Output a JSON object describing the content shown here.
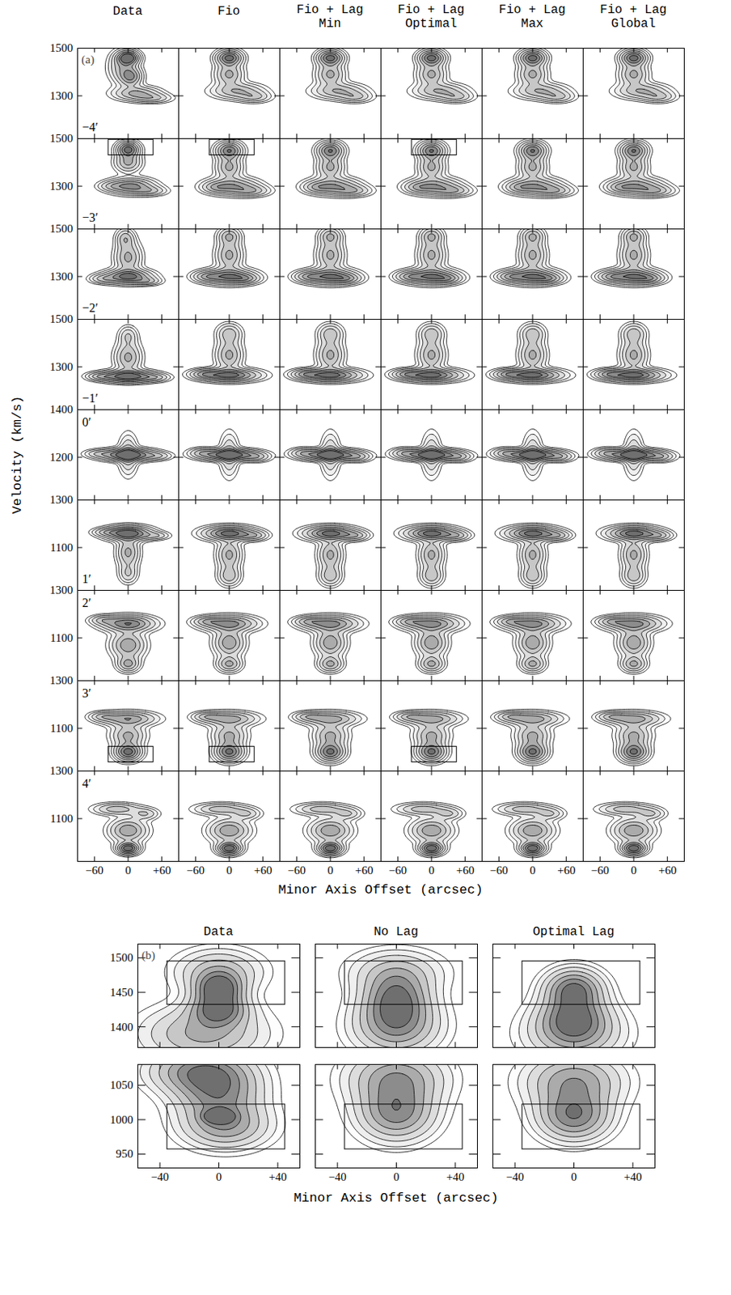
{
  "chart_data": [
    {
      "type": "contour",
      "panel": "(a)",
      "y_label": "Velocity (km/s)",
      "x_label": "Minor Axis Offset (arcsec)",
      "columns": [
        "Data",
        "Fio",
        "Fio + Lag Min",
        "Fio + Lag Optimal",
        "Fio + Lag Max",
        "Fio + Lag Global"
      ],
      "xlim": [
        -90,
        90
      ],
      "xticks": [
        {
          "value": -60,
          "label": "−60"
        },
        0,
        {
          "value": 60,
          "label": "+60"
        }
      ],
      "contour_levels": [
        0.05,
        0.1,
        0.18,
        0.3,
        0.45,
        0.62,
        0.8
      ],
      "rows": [
        {
          "label": "−4′",
          "ylim": [
            1120,
            1500
          ],
          "yticks": [
            1300,
            1500
          ],
          "data_components": [
            [
              0,
              1460,
              12,
              18,
              1.0
            ],
            [
              5,
              1380,
              12,
              25,
              0.6
            ],
            [
              15,
              1310,
              25,
              18,
              0.5
            ],
            [
              45,
              1290,
              20,
              12,
              0.3
            ],
            [
              -10,
              1420,
              15,
              40,
              0.4
            ]
          ],
          "model_components": [
            [
              0,
              1460,
              14,
              20,
              0.9
            ],
            [
              0,
              1390,
              15,
              30,
              0.5
            ],
            [
              15,
              1320,
              28,
              20,
              0.45
            ],
            [
              45,
              1295,
              18,
              14,
              0.3
            ]
          ]
        },
        {
          "label": "−3′",
          "ylim": [
            1120,
            1500
          ],
          "yticks": [
            1300,
            1500
          ],
          "data_components": [
            [
              0,
              1455,
              12,
              20,
              0.9
            ],
            [
              0,
              1400,
              14,
              25,
              0.5
            ],
            [
              5,
              1300,
              25,
              20,
              0.7
            ],
            [
              40,
              1280,
              18,
              12,
              0.3
            ],
            [
              -30,
              1300,
              15,
              12,
              0.2
            ]
          ],
          "model_components": [
            [
              0,
              1450,
              14,
              22,
              0.8
            ],
            [
              0,
              1380,
              14,
              30,
              0.5
            ],
            [
              5,
              1300,
              28,
              22,
              0.6
            ],
            [
              40,
              1280,
              20,
              14,
              0.35
            ],
            [
              -25,
              1295,
              15,
              14,
              0.25
            ]
          ]
        },
        {
          "label": "−2′",
          "ylim": [
            1120,
            1500
          ],
          "yticks": [
            1300,
            1500
          ],
          "data_components": [
            [
              0,
              1300,
              25,
              18,
              0.9
            ],
            [
              0,
              1380,
              14,
              40,
              0.5
            ],
            [
              -5,
              1460,
              10,
              25,
              0.4
            ],
            [
              -45,
              1290,
              15,
              12,
              0.3
            ],
            [
              35,
              1280,
              15,
              10,
              0.3
            ]
          ],
          "model_components": [
            [
              0,
              1300,
              28,
              20,
              0.8
            ],
            [
              0,
              1390,
              14,
              40,
              0.5
            ],
            [
              0,
              1470,
              12,
              22,
              0.45
            ],
            [
              -40,
              1300,
              16,
              14,
              0.35
            ],
            [
              30,
              1290,
              15,
              12,
              0.3
            ]
          ]
        },
        {
          "label": "−1′",
          "ylim": [
            1120,
            1500
          ],
          "yticks": [
            1300,
            1500
          ],
          "data_components": [
            [
              0,
              1260,
              30,
              15,
              1.0
            ],
            [
              0,
              1340,
              14,
              40,
              0.5
            ],
            [
              0,
              1430,
              10,
              25,
              0.3
            ],
            [
              -50,
              1260,
              15,
              10,
              0.3
            ],
            [
              50,
              1255,
              15,
              10,
              0.25
            ]
          ],
          "model_components": [
            [
              0,
              1265,
              32,
              16,
              0.9
            ],
            [
              0,
              1350,
              14,
              40,
              0.5
            ],
            [
              0,
              1440,
              13,
              25,
              0.4
            ],
            [
              -45,
              1270,
              16,
              12,
              0.35
            ]
          ]
        },
        {
          "label": "0′",
          "ylim": [
            1020,
            1400
          ],
          "yticks": [
            1200,
            1400
          ],
          "data_components": [
            [
              0,
              1210,
              30,
              15,
              1.0
            ],
            [
              0,
              1210,
              10,
              50,
              0.4
            ],
            [
              -55,
              1215,
              15,
              10,
              0.2
            ],
            [
              55,
              1205,
              15,
              10,
              0.2
            ]
          ],
          "model_components": [
            [
              0,
              1210,
              32,
              14,
              1.0
            ],
            [
              0,
              1210,
              10,
              55,
              0.35
            ],
            [
              -50,
              1220,
              14,
              12,
              0.25
            ],
            [
              50,
              1200,
              14,
              12,
              0.25
            ]
          ]
        },
        {
          "label": "1′",
          "ylim": [
            920,
            1300
          ],
          "yticks": [
            1100,
            1300
          ],
          "data_components": [
            [
              0,
              1160,
              25,
              18,
              1.0
            ],
            [
              0,
              1080,
              12,
              40,
              0.5
            ],
            [
              0,
              990,
              10,
              25,
              0.3
            ],
            [
              50,
              1150,
              15,
              10,
              0.25
            ],
            [
              -40,
              1165,
              15,
              10,
              0.25
            ]
          ],
          "model_components": [
            [
              0,
              1160,
              28,
              18,
              0.9
            ],
            [
              0,
              1070,
              13,
              40,
              0.5
            ],
            [
              0,
              980,
              12,
              25,
              0.4
            ],
            [
              45,
              1150,
              15,
              12,
              0.3
            ]
          ]
        },
        {
          "label": "2′",
          "ylim": [
            920,
            1300
          ],
          "yticks": [
            1100,
            1300
          ],
          "data_components": [
            [
              0,
              1160,
              28,
              20,
              0.8
            ],
            [
              0,
              1070,
              18,
              35,
              0.6
            ],
            [
              0,
              990,
              12,
              20,
              0.5
            ],
            [
              -45,
              1175,
              15,
              12,
              0.3
            ]
          ],
          "model_components": [
            [
              0,
              1160,
              30,
              20,
              0.7
            ],
            [
              0,
              1080,
              16,
              35,
              0.6
            ],
            [
              0,
              990,
              13,
              20,
              0.5
            ],
            [
              -40,
              1170,
              16,
              12,
              0.3
            ]
          ]
        },
        {
          "label": "3′",
          "ylim": [
            920,
            1300
          ],
          "yticks": [
            1100,
            1300
          ],
          "data_components": [
            [
              0,
              1140,
              30,
              18,
              0.6
            ],
            [
              0,
              1000,
              14,
              22,
              0.9
            ],
            [
              0,
              1070,
              18,
              30,
              0.5
            ],
            [
              -45,
              1150,
              15,
              12,
              0.3
            ]
          ],
          "model_components": [
            [
              0,
              1140,
              30,
              18,
              0.55
            ],
            [
              0,
              1000,
              15,
              24,
              0.85
            ],
            [
              0,
              1070,
              18,
              30,
              0.5
            ],
            [
              -40,
              1150,
              16,
              12,
              0.3
            ]
          ]
        },
        {
          "label": "4′",
          "ylim": [
            920,
            1300
          ],
          "yticks": [
            1100,
            1300
          ],
          "data_components": [
            [
              0,
              975,
              12,
              15,
              1.0
            ],
            [
              0,
              1050,
              20,
              30,
              0.6
            ],
            [
              -20,
              1140,
              25,
              15,
              0.4
            ],
            [
              30,
              1120,
              15,
              15,
              0.3
            ]
          ],
          "model_components": [
            [
              0,
              975,
              13,
              16,
              1.0
            ],
            [
              0,
              1050,
              22,
              30,
              0.6
            ],
            [
              -15,
              1140,
              28,
              15,
              0.4
            ],
            [
              30,
              1120,
              16,
              15,
              0.3
            ]
          ]
        }
      ],
      "boxes": [
        {
          "row": "−3′",
          "columns": [
            "Data",
            "Fio",
            "Fio + Lag Optimal"
          ],
          "x": [
            -35,
            45
          ],
          "y": [
            1430,
            1495
          ]
        },
        {
          "row": "3′",
          "columns": [
            "Data",
            "Fio",
            "Fio + Lag Optimal"
          ],
          "x": [
            -35,
            45
          ],
          "y": [
            957,
            1022
          ]
        }
      ]
    },
    {
      "type": "contour",
      "panel": "(b)",
      "x_label": "Minor Axis Offset (arcsec)",
      "columns": [
        "Data",
        "No Lag",
        "Optimal Lag"
      ],
      "xlim": [
        -55,
        55
      ],
      "xticks": [
        {
          "value": -40,
          "label": "−40"
        },
        0,
        {
          "value": 40,
          "label": "+40"
        }
      ],
      "contour_levels": [
        0.05,
        0.1,
        0.18,
        0.3,
        0.45,
        0.62,
        0.8
      ],
      "rows": [
        {
          "ylim": [
            1370,
            1520
          ],
          "yticks": [
            1400,
            1450,
            1500
          ],
          "box": {
            "x": [
              -35,
              45
            ],
            "y": [
              1432,
              1495
            ]
          },
          "components": [
            [
              [
                0,
                1455,
                10,
                15,
                0.9
              ],
              [
                0,
                1425,
                12,
                15,
                0.8
              ],
              [
                0,
                1480,
                18,
                20,
                0.4
              ],
              [
                -10,
                1390,
                25,
                25,
                0.5
              ]
            ],
            [
              [
                0,
                1440,
                14,
                25,
                0.8
              ],
              [
                0,
                1400,
                18,
                25,
                0.6
              ],
              [
                0,
                1480,
                20,
                20,
                0.3
              ]
            ],
            [
              [
                0,
                1455,
                12,
                18,
                0.8
              ],
              [
                0,
                1415,
                14,
                22,
                0.7
              ],
              [
                0,
                1390,
                20,
                25,
                0.5
              ]
            ]
          ]
        },
        {
          "ylim": [
            930,
            1080
          ],
          "yticks": [
            950,
            1000,
            1050
          ],
          "box": {
            "x": [
              -35,
              45
            ],
            "y": [
              957,
              1022
            ]
          },
          "components": [
            [
              [
                0,
                1005,
                6,
                6,
                0.9
              ],
              [
                0,
                1040,
                18,
                30,
                0.7
              ],
              [
                -15,
                1070,
                20,
                20,
                0.6
              ],
              [
                5,
                990,
                18,
                20,
                0.5
              ]
            ],
            [
              [
                0,
                1010,
                16,
                25,
                0.7
              ],
              [
                0,
                1060,
                20,
                25,
                0.6
              ]
            ],
            [
              [
                0,
                1005,
                15,
                22,
                0.75
              ],
              [
                0,
                1055,
                20,
                25,
                0.6
              ]
            ]
          ]
        }
      ]
    }
  ]
}
